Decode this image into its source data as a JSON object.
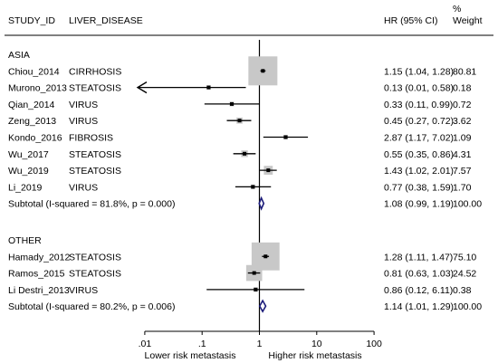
{
  "chart_data": {
    "type": "forest",
    "x_scale": "log",
    "x_ticks": [
      0.01,
      0.1,
      1,
      10,
      100
    ],
    "x_tick_labels": [
      ".01",
      ".1",
      "1",
      "10",
      "100"
    ],
    "reference_line": 1,
    "x_annotations": {
      "left": "Lower risk metastasis",
      "right": "Higher risk metastasis"
    },
    "headers": {
      "study": "STUDY_ID",
      "disease": "LIVER_DISEASE",
      "hr": "HR (95% CI)",
      "weight_top": "%",
      "weight_bottom": "Weight"
    },
    "groups": [
      {
        "name": "ASIA",
        "studies": [
          {
            "id": "Chiou_2014",
            "disease": "CIRRHOSIS",
            "hr": 1.15,
            "lo": 1.04,
            "hi": 1.28,
            "hr_text": "1.15 (1.04, 1.28)",
            "weight": "80.81"
          },
          {
            "id": "Murono_2013",
            "disease": "STEATOSIS",
            "hr": 0.13,
            "lo": 0.01,
            "hi": 0.58,
            "hr_text": "0.13 (0.01, 0.58)",
            "weight": "0.18",
            "arrow_left": true
          },
          {
            "id": "Qian_2014",
            "disease": "VIRUS",
            "hr": 0.33,
            "lo": 0.11,
            "hi": 0.99,
            "hr_text": "0.33 (0.11, 0.99)",
            "weight": "0.72"
          },
          {
            "id": "Zeng_2013",
            "disease": "VIRUS",
            "hr": 0.45,
            "lo": 0.27,
            "hi": 0.72,
            "hr_text": "0.45 (0.27, 0.72)",
            "weight": "3.62"
          },
          {
            "id": "Kondo_2016",
            "disease": "FIBROSIS",
            "hr": 2.87,
            "lo": 1.17,
            "hi": 7.02,
            "hr_text": "2.87 (1.17, 7.02)",
            "weight": "1.09"
          },
          {
            "id": "Wu_2017",
            "disease": "STEATOSIS",
            "hr": 0.55,
            "lo": 0.35,
            "hi": 0.86,
            "hr_text": "0.55 (0.35, 0.86)",
            "weight": "4.31"
          },
          {
            "id": "Wu_2019",
            "disease": "STEATOSIS",
            "hr": 1.43,
            "lo": 1.02,
            "hi": 2.01,
            "hr_text": "1.43 (1.02, 2.01)",
            "weight": "7.57"
          },
          {
            "id": "Li_2019",
            "disease": "VIRUS",
            "hr": 0.77,
            "lo": 0.38,
            "hi": 1.59,
            "hr_text": "0.77 (0.38, 1.59)",
            "weight": "1.70"
          }
        ],
        "subtotal": {
          "label": "Subtotal  (I-squared = 81.8%, p = 0.000)",
          "hr": 1.08,
          "lo": 0.99,
          "hi": 1.19,
          "hr_text": "1.08 (0.99, 1.19)",
          "weight": "100.00"
        }
      },
      {
        "name": "OTHER",
        "studies": [
          {
            "id": "Hamady_2012",
            "disease": "STEATOSIS",
            "hr": 1.28,
            "lo": 1.11,
            "hi": 1.47,
            "hr_text": "1.28 (1.11, 1.47)",
            "weight": "75.10"
          },
          {
            "id": "Ramos_2015",
            "disease": "STEATOSIS",
            "hr": 0.81,
            "lo": 0.63,
            "hi": 1.03,
            "hr_text": "0.81 (0.63, 1.03)",
            "weight": "24.52"
          },
          {
            "id": "Li Destri_2013",
            "disease": "VIRUS",
            "hr": 0.86,
            "lo": 0.12,
            "hi": 6.11,
            "hr_text": "0.86 (0.12, 6.11)",
            "weight": "0.38"
          }
        ],
        "subtotal": {
          "label": "Subtotal  (I-squared = 80.2%, p = 0.006)",
          "hr": 1.14,
          "lo": 1.01,
          "hi": 1.29,
          "hr_text": "1.14 (1.01, 1.29)",
          "weight": "100.00"
        }
      }
    ],
    "colors": {
      "box": "#c8c8c8",
      "line": "#000000",
      "diamond": "#1c1c7a"
    }
  }
}
